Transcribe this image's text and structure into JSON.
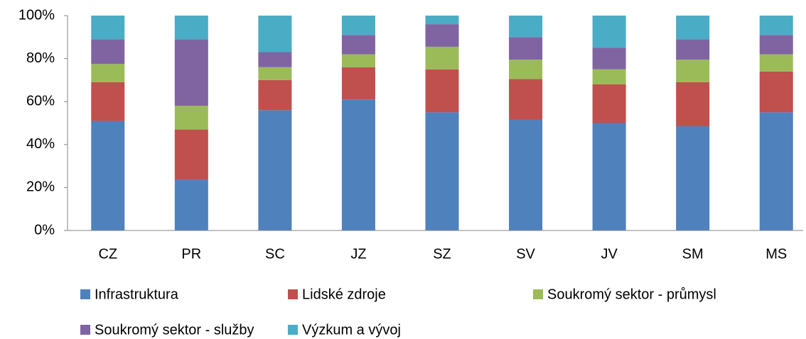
{
  "chart_data": {
    "type": "stacked_bar",
    "categories": [
      "CZ",
      "PR",
      "SC",
      "JZ",
      "SZ",
      "SV",
      "JV",
      "SM",
      "MS"
    ],
    "series": [
      {
        "name": "Infrastruktura",
        "color": "#4f81bd",
        "values": [
          51,
          23.5,
          56,
          61,
          55,
          51.5,
          50,
          48.5,
          55
        ]
      },
      {
        "name": "Lidské zdroje",
        "color": "#c0504d",
        "values": [
          18,
          23.5,
          14,
          15,
          20,
          19,
          18,
          20.5,
          19
        ]
      },
      {
        "name": "Soukromý sektor - průmysl",
        "color": "#9bbb59",
        "values": [
          8.5,
          11,
          6,
          6,
          10.5,
          9,
          7,
          10.5,
          8
        ]
      },
      {
        "name": "Soukromý sektor - služby",
        "color": "#8064a2",
        "values": [
          11.5,
          31,
          7,
          9,
          10.5,
          10.5,
          10,
          9.5,
          9
        ]
      },
      {
        "name": "Výzkum a vývoj",
        "color": "#4bacc6",
        "values": [
          11,
          11,
          17,
          9,
          4,
          10,
          15,
          11,
          9
        ]
      }
    ],
    "ylim": [
      0,
      100
    ],
    "yticks": [
      {
        "value": 0,
        "label": "0%"
      },
      {
        "value": 20,
        "label": "20%"
      },
      {
        "value": 40,
        "label": "40%"
      },
      {
        "value": 60,
        "label": "60%"
      },
      {
        "value": 80,
        "label": "80%"
      },
      {
        "value": 100,
        "label": "100%"
      }
    ],
    "grid": false,
    "legend": "bottom"
  }
}
